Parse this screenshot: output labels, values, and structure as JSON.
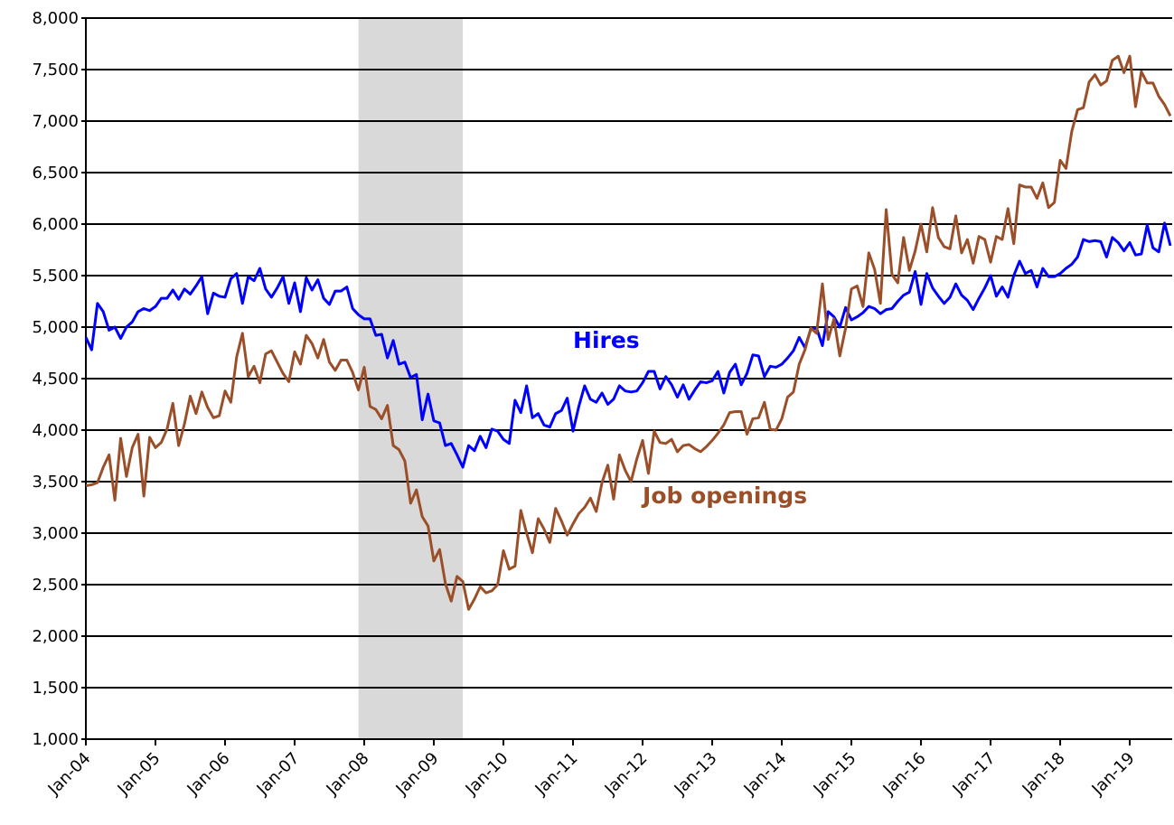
{
  "chart_data": {
    "type": "line",
    "categories": [
      "Jan-04",
      null,
      null,
      null,
      null,
      null,
      null,
      null,
      null,
      null,
      null,
      null,
      "Jan-05",
      null,
      null,
      null,
      null,
      null,
      null,
      null,
      null,
      null,
      null,
      null,
      "Jan-06",
      null,
      null,
      null,
      null,
      null,
      null,
      null,
      null,
      null,
      null,
      null,
      "Jan-07",
      null,
      null,
      null,
      null,
      null,
      null,
      null,
      null,
      null,
      null,
      null,
      "Jan-08",
      null,
      null,
      null,
      null,
      null,
      null,
      null,
      null,
      null,
      null,
      null,
      "Jan-09",
      null,
      null,
      null,
      null,
      null,
      null,
      null,
      null,
      null,
      null,
      null,
      "Jan-10",
      null,
      null,
      null,
      null,
      null,
      null,
      null,
      null,
      null,
      null,
      null,
      "Jan-11",
      null,
      null,
      null,
      null,
      null,
      null,
      null,
      null,
      null,
      null,
      null,
      "Jan-12",
      null,
      null,
      null,
      null,
      null,
      null,
      null,
      null,
      null,
      null,
      null,
      "Jan-13",
      null,
      null,
      null,
      null,
      null,
      null,
      null,
      null,
      null,
      null,
      null,
      "Jan-14",
      null,
      null,
      null,
      null,
      null,
      null,
      null,
      null,
      null,
      null,
      null,
      "Jan-15",
      null,
      null,
      null,
      null,
      null,
      null,
      null,
      null,
      null,
      null,
      null,
      "Jan-16",
      null,
      null,
      null,
      null,
      null,
      null,
      null,
      null,
      null,
      null,
      null,
      "Jan-17",
      null,
      null,
      null,
      null,
      null,
      null,
      null,
      null,
      null,
      null,
      null,
      "Jan-18",
      null,
      null,
      null,
      null,
      null,
      null,
      null,
      null,
      null,
      null,
      null,
      "Jan-19",
      null,
      null,
      null,
      null,
      null,
      null,
      null
    ],
    "series": [
      {
        "name": "Hires",
        "color": "#0000ff",
        "values": [
          4900,
          4780,
          5230,
          5150,
          4970,
          5000,
          4890,
          5000,
          5050,
          5150,
          5180,
          5160,
          5200,
          5280,
          5280,
          5360,
          5270,
          5370,
          5320,
          5400,
          5490,
          5130,
          5330,
          5300,
          5290,
          5470,
          5520,
          5230,
          5490,
          5450,
          5570,
          5370,
          5290,
          5380,
          5490,
          5230,
          5430,
          5150,
          5480,
          5360,
          5460,
          5280,
          5220,
          5350,
          5350,
          5390,
          5180,
          5120,
          5080,
          5080,
          4920,
          4930,
          4700,
          4870,
          4640,
          4660,
          4510,
          4540,
          4100,
          4350,
          4090,
          4070,
          3850,
          3870,
          3760,
          3640,
          3850,
          3800,
          3940,
          3830,
          4010,
          3990,
          3910,
          3870,
          4290,
          4170,
          4430,
          4120,
          4160,
          4050,
          4030,
          4160,
          4190,
          4310,
          3990,
          4230,
          4430,
          4300,
          4270,
          4360,
          4250,
          4300,
          4430,
          4380,
          4370,
          4380,
          4460,
          4570,
          4570,
          4400,
          4520,
          4440,
          4320,
          4440,
          4300,
          4390,
          4470,
          4460,
          4480,
          4570,
          4360,
          4560,
          4640,
          4440,
          4550,
          4730,
          4720,
          4520,
          4620,
          4610,
          4640,
          4700,
          4770,
          4900,
          4800,
          4980,
          4990,
          4820,
          5150,
          5100,
          5000,
          5190,
          5070,
          5100,
          5140,
          5200,
          5180,
          5130,
          5170,
          5180,
          5250,
          5310,
          5340,
          5540,
          5220,
          5520,
          5380,
          5300,
          5230,
          5290,
          5420,
          5310,
          5260,
          5170,
          5280,
          5380,
          5500,
          5300,
          5390,
          5290,
          5500,
          5640,
          5520,
          5550,
          5390,
          5570,
          5490,
          5490,
          5520,
          5570,
          5610,
          5680,
          5850,
          5830,
          5840,
          5830,
          5680,
          5870,
          5820,
          5740,
          5820,
          5700,
          5710,
          5990,
          5770,
          5730,
          6010,
          5790
        ]
      },
      {
        "name": "Job openings",
        "color": "#9b4f28",
        "values": [
          3460,
          3470,
          3490,
          3640,
          3760,
          3320,
          3920,
          3550,
          3830,
          3960,
          3360,
          3930,
          3830,
          3880,
          4010,
          4260,
          3850,
          4060,
          4330,
          4160,
          4370,
          4220,
          4120,
          4140,
          4380,
          4270,
          4710,
          4940,
          4520,
          4620,
          4460,
          4740,
          4770,
          4660,
          4550,
          4470,
          4760,
          4640,
          4920,
          4840,
          4700,
          4880,
          4660,
          4580,
          4680,
          4680,
          4560,
          4390,
          4610,
          4230,
          4200,
          4110,
          4240,
          3850,
          3810,
          3700,
          3290,
          3420,
          3160,
          3070,
          2730,
          2840,
          2510,
          2340,
          2580,
          2530,
          2260,
          2360,
          2480,
          2420,
          2440,
          2500,
          2830,
          2650,
          2680,
          3220,
          3000,
          2810,
          3140,
          3040,
          2910,
          3240,
          3120,
          2980,
          3090,
          3190,
          3250,
          3340,
          3210,
          3490,
          3660,
          3330,
          3760,
          3610,
          3500,
          3720,
          3900,
          3580,
          3990,
          3880,
          3870,
          3910,
          3790,
          3850,
          3860,
          3820,
          3790,
          3840,
          3900,
          3970,
          4050,
          4170,
          4180,
          4180,
          3960,
          4110,
          4120,
          4270,
          4010,
          4000,
          4110,
          4320,
          4370,
          4640,
          4780,
          4990,
          4940,
          5420,
          4880,
          5080,
          4720,
          4990,
          5370,
          5400,
          5200,
          5720,
          5560,
          5230,
          6140,
          5510,
          5430,
          5870,
          5550,
          5740,
          6000,
          5730,
          6160,
          5870,
          5780,
          5760,
          6080,
          5720,
          5850,
          5620,
          5880,
          5850,
          5630,
          5880,
          5850,
          6150,
          5810,
          6380,
          6360,
          6360,
          6250,
          6400,
          6160,
          6210,
          6620,
          6540,
          6900,
          7110,
          7130,
          7380,
          7450,
          7350,
          7390,
          7590,
          7630,
          7470,
          7630,
          7140,
          7480,
          7370,
          7370,
          7240,
          7160,
          7050
        ]
      }
    ],
    "annotations": [
      {
        "text": "Hires",
        "series": 0,
        "at": 84,
        "value": 4800
      },
      {
        "text": "Job openings",
        "series": 1,
        "at": 96,
        "value": 3290
      }
    ],
    "bands": [
      {
        "from": 47,
        "to": 65,
        "color": "#d9d9d9"
      }
    ],
    "ylim": [
      1000,
      8000
    ],
    "yticks": [
      {
        "value": 1000,
        "label": "1,000"
      },
      {
        "value": 1500,
        "label": "1,500"
      },
      {
        "value": 2000,
        "label": "2,000"
      },
      {
        "value": 2500,
        "label": "2,500"
      },
      {
        "value": 3000,
        "label": "3,000"
      },
      {
        "value": 3500,
        "label": "3,500"
      },
      {
        "value": 4000,
        "label": "4,000"
      },
      {
        "value": 4500,
        "label": "4,500"
      },
      {
        "value": 5000,
        "label": "5,000"
      },
      {
        "value": 5500,
        "label": "5,500"
      },
      {
        "value": 6000,
        "label": "6,000"
      },
      {
        "value": 6500,
        "label": "6,500"
      },
      {
        "value": 7000,
        "label": "7,000"
      },
      {
        "value": 7500,
        "label": "7,500"
      },
      {
        "value": 8000,
        "label": "8,000"
      }
    ],
    "grid": true
  }
}
